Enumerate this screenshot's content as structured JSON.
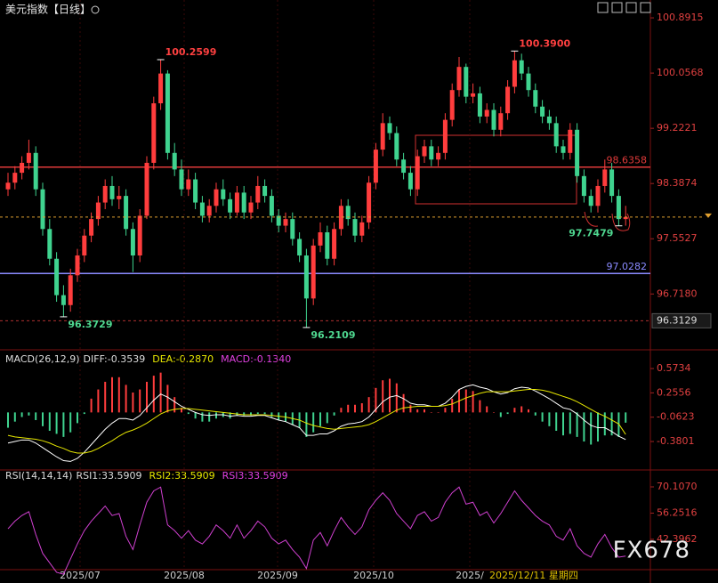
{
  "chart_data": {
    "type": "candlestick",
    "title": "美元指数【日线】",
    "ylim": [
      96.17,
      101.0
    ],
    "yticks": [
      100.8915,
      100.0568,
      99.2221,
      98.3874,
      97.5527,
      {
        "value": 96.718,
        "label": "96.7180"
      }
    ],
    "up_color": "#ff3d3d",
    "down_color": "#3fd38f",
    "candles": [
      [
        98.3,
        98.55,
        98.2,
        98.4
      ],
      [
        98.4,
        98.65,
        98.3,
        98.55
      ],
      [
        98.55,
        98.8,
        98.45,
        98.7
      ],
      [
        98.7,
        99.05,
        98.6,
        98.85
      ],
      [
        98.85,
        98.95,
        98.2,
        98.3
      ],
      [
        98.3,
        98.4,
        97.6,
        97.7
      ],
      [
        97.7,
        97.85,
        97.15,
        97.25
      ],
      [
        97.25,
        97.35,
        96.6,
        96.7
      ],
      [
        96.7,
        96.85,
        96.3729,
        96.55
      ],
      [
        96.55,
        97.1,
        96.45,
        97.0
      ],
      [
        97.0,
        97.4,
        96.9,
        97.3
      ],
      [
        97.3,
        97.7,
        97.2,
        97.6
      ],
      [
        97.6,
        97.95,
        97.5,
        97.85
      ],
      [
        97.85,
        98.2,
        97.75,
        98.1
      ],
      [
        98.1,
        98.45,
        98.0,
        98.35
      ],
      [
        98.35,
        98.5,
        98.05,
        98.15
      ],
      [
        98.15,
        98.35,
        98.0,
        98.2
      ],
      [
        98.2,
        98.3,
        97.6,
        97.7
      ],
      [
        97.7,
        97.8,
        97.05,
        97.3
      ],
      [
        97.3,
        98.0,
        97.2,
        97.9
      ],
      [
        97.9,
        98.8,
        97.85,
        98.7
      ],
      [
        98.7,
        99.7,
        98.6,
        99.6
      ],
      [
        99.6,
        100.2599,
        99.5,
        100.05
      ],
      [
        100.05,
        100.1,
        98.75,
        98.85
      ],
      [
        98.85,
        99.0,
        98.5,
        98.6
      ],
      [
        98.6,
        98.75,
        98.2,
        98.3
      ],
      [
        98.3,
        98.6,
        98.2,
        98.45
      ],
      [
        98.45,
        98.55,
        98.0,
        98.1
      ],
      [
        98.1,
        98.2,
        97.8,
        97.9
      ],
      [
        97.9,
        98.15,
        97.8,
        98.05
      ],
      [
        98.05,
        98.4,
        97.95,
        98.3
      ],
      [
        98.3,
        98.45,
        98.05,
        98.15
      ],
      [
        98.15,
        98.25,
        97.85,
        97.95
      ],
      [
        97.95,
        98.35,
        97.9,
        98.25
      ],
      [
        98.25,
        98.35,
        97.85,
        97.95
      ],
      [
        97.95,
        98.2,
        97.85,
        98.1
      ],
      [
        98.1,
        98.5,
        98.0,
        98.35
      ],
      [
        98.35,
        98.45,
        98.1,
        98.2
      ],
      [
        98.2,
        98.3,
        97.8,
        97.9
      ],
      [
        97.9,
        98.0,
        97.65,
        97.75
      ],
      [
        97.75,
        97.95,
        97.65,
        97.85
      ],
      [
        97.85,
        97.95,
        97.45,
        97.55
      ],
      [
        97.55,
        97.65,
        97.2,
        97.3
      ],
      [
        97.3,
        97.4,
        96.2109,
        96.65
      ],
      [
        96.65,
        97.55,
        96.55,
        97.45
      ],
      [
        97.45,
        97.8,
        97.35,
        97.65
      ],
      [
        97.65,
        97.75,
        97.15,
        97.25
      ],
      [
        97.25,
        97.8,
        97.15,
        97.7
      ],
      [
        97.7,
        98.15,
        97.6,
        98.05
      ],
      [
        98.05,
        98.15,
        97.75,
        97.85
      ],
      [
        97.85,
        97.95,
        97.5,
        97.6
      ],
      [
        97.6,
        97.9,
        97.5,
        97.8
      ],
      [
        97.8,
        98.5,
        97.7,
        98.4
      ],
      [
        98.4,
        99.0,
        98.3,
        98.9
      ],
      [
        98.9,
        99.45,
        98.8,
        99.3
      ],
      [
        99.3,
        99.4,
        99.05,
        99.15
      ],
      [
        99.15,
        99.25,
        98.65,
        98.75
      ],
      [
        98.75,
        98.85,
        98.45,
        98.55
      ],
      [
        98.55,
        98.65,
        98.2,
        98.3
      ],
      [
        98.3,
        98.9,
        98.2,
        98.8
      ],
      [
        98.8,
        99.05,
        98.7,
        98.95
      ],
      [
        98.95,
        99.05,
        98.65,
        98.75
      ],
      [
        98.75,
        98.95,
        98.65,
        98.85
      ],
      [
        98.85,
        99.45,
        98.75,
        99.35
      ],
      [
        99.35,
        99.9,
        99.25,
        99.8
      ],
      [
        99.8,
        100.3,
        99.7,
        100.15
      ],
      [
        100.15,
        100.2,
        99.6,
        99.7
      ],
      [
        99.7,
        99.9,
        99.6,
        99.75
      ],
      [
        99.75,
        99.85,
        99.3,
        99.4
      ],
      [
        99.4,
        99.6,
        99.3,
        99.5
      ],
      [
        99.5,
        99.6,
        99.1,
        99.2
      ],
      [
        99.2,
        99.55,
        99.1,
        99.45
      ],
      [
        99.45,
        99.95,
        99.35,
        99.85
      ],
      [
        99.85,
        100.39,
        99.75,
        100.25
      ],
      [
        100.25,
        100.35,
        99.95,
        100.05
      ],
      [
        100.05,
        100.15,
        99.7,
        99.8
      ],
      [
        99.8,
        99.9,
        99.45,
        99.55
      ],
      [
        99.55,
        99.65,
        99.3,
        99.4
      ],
      [
        99.4,
        99.5,
        99.2,
        99.3
      ],
      [
        99.3,
        99.4,
        98.85,
        98.95
      ],
      [
        98.95,
        99.05,
        98.75,
        98.85
      ],
      [
        98.85,
        99.3,
        98.75,
        99.2
      ],
      [
        99.2,
        99.3,
        98.4,
        98.5
      ],
      [
        98.5,
        98.6,
        98.1,
        98.2
      ],
      [
        98.2,
        98.3,
        97.95,
        98.05
      ],
      [
        98.05,
        98.45,
        97.95,
        98.35
      ],
      [
        98.35,
        98.75,
        98.25,
        98.6
      ],
      [
        98.6,
        98.7,
        98.1,
        98.2
      ],
      [
        98.2,
        98.3,
        97.7479,
        97.85
      ],
      [
        97.85,
        98.05,
        97.75,
        97.88
      ]
    ],
    "annotations": [
      {
        "value": 100.2599,
        "color": "#ff4040"
      },
      {
        "value": 100.39,
        "label": "100.3900",
        "color": "#ff4040"
      },
      {
        "value": 96.3729,
        "color": "#4fd890"
      },
      {
        "value": 96.2109,
        "color": "#4fd890"
      },
      {
        "value": 97.7479,
        "color": "#4fd890"
      }
    ],
    "hlines": [
      {
        "value": 98.6358,
        "color": "#e03a3a"
      },
      {
        "value": 97.0282,
        "color": "#8a8aff"
      },
      {
        "value": 96.3129,
        "color": "#b03030",
        "dashed": true
      }
    ],
    "last_line_color": "#e0a030",
    "x_labels": [
      "2025/07",
      "2025/08",
      "2025/09",
      "2025/10",
      "2025/"
    ],
    "cursor_label": "2025/12/11 星期四",
    "watermark": "FX678",
    "macd": {
      "header": [
        "MACD(26,12,9)",
        "DIFF:-0.3539",
        "DEA:-0.2870",
        "MACD:-0.1340"
      ],
      "ylim": [
        -0.74,
        0.76
      ],
      "yticks": [
        0.5734,
        0.2556,
        -0.0623,
        -0.3801
      ],
      "diff": [
        -0.4,
        -0.38,
        -0.36,
        -0.36,
        -0.4,
        -0.46,
        -0.52,
        -0.58,
        -0.63,
        -0.64,
        -0.6,
        -0.52,
        -0.42,
        -0.32,
        -0.22,
        -0.14,
        -0.08,
        -0.08,
        -0.1,
        -0.04,
        0.06,
        0.16,
        0.24,
        0.2,
        0.14,
        0.08,
        0.04,
        0.0,
        -0.03,
        -0.04,
        -0.03,
        -0.03,
        -0.05,
        -0.04,
        -0.05,
        -0.05,
        -0.04,
        -0.04,
        -0.07,
        -0.1,
        -0.12,
        -0.16,
        -0.2,
        -0.3,
        -0.3,
        -0.28,
        -0.28,
        -0.24,
        -0.18,
        -0.15,
        -0.14,
        -0.12,
        -0.06,
        0.04,
        0.14,
        0.2,
        0.22,
        0.18,
        0.12,
        0.1,
        0.1,
        0.08,
        0.08,
        0.12,
        0.2,
        0.3,
        0.34,
        0.36,
        0.33,
        0.31,
        0.27,
        0.24,
        0.26,
        0.31,
        0.33,
        0.32,
        0.28,
        0.23,
        0.18,
        0.12,
        0.06,
        0.04,
        -0.02,
        -0.1,
        -0.17,
        -0.2,
        -0.2,
        -0.25,
        -0.31,
        -0.3539
      ],
      "dea": [
        -0.3,
        -0.32,
        -0.33,
        -0.34,
        -0.35,
        -0.37,
        -0.4,
        -0.44,
        -0.47,
        -0.51,
        -0.53,
        -0.53,
        -0.51,
        -0.47,
        -0.42,
        -0.37,
        -0.31,
        -0.26,
        -0.23,
        -0.19,
        -0.14,
        -0.08,
        -0.02,
        0.02,
        0.04,
        0.05,
        0.05,
        0.04,
        0.03,
        0.02,
        0.01,
        0.0,
        -0.01,
        -0.02,
        -0.03,
        -0.03,
        -0.03,
        -0.03,
        -0.04,
        -0.05,
        -0.06,
        -0.08,
        -0.1,
        -0.14,
        -0.17,
        -0.19,
        -0.21,
        -0.22,
        -0.21,
        -0.2,
        -0.19,
        -0.18,
        -0.16,
        -0.12,
        -0.07,
        -0.02,
        0.03,
        0.06,
        0.07,
        0.08,
        0.08,
        0.08,
        0.08,
        0.09,
        0.11,
        0.15,
        0.19,
        0.22,
        0.25,
        0.27,
        0.27,
        0.27,
        0.27,
        0.28,
        0.29,
        0.3,
        0.3,
        0.29,
        0.27,
        0.24,
        0.21,
        0.18,
        0.14,
        0.09,
        0.04,
        -0.01,
        -0.05,
        -0.1,
        -0.15,
        -0.287
      ],
      "hist": [
        -0.2,
        -0.12,
        -0.06,
        -0.04,
        -0.1,
        -0.18,
        -0.24,
        -0.28,
        -0.32,
        -0.26,
        -0.14,
        -0.02,
        0.18,
        0.3,
        0.4,
        0.46,
        0.46,
        0.36,
        0.26,
        0.3,
        0.4,
        0.48,
        0.52,
        0.36,
        0.2,
        0.06,
        -0.02,
        -0.08,
        -0.12,
        -0.12,
        -0.08,
        -0.06,
        -0.08,
        -0.04,
        -0.04,
        -0.04,
        -0.02,
        -0.02,
        -0.06,
        -0.1,
        -0.12,
        -0.16,
        -0.2,
        -0.32,
        -0.26,
        -0.18,
        -0.14,
        -0.04,
        0.06,
        0.1,
        0.1,
        0.12,
        0.2,
        0.32,
        0.42,
        0.44,
        0.38,
        0.24,
        0.1,
        0.04,
        0.04,
        0.0,
        0.0,
        0.06,
        0.18,
        0.3,
        0.3,
        0.28,
        0.16,
        0.08,
        0.0,
        -0.06,
        -0.02,
        0.06,
        0.08,
        0.04,
        -0.04,
        -0.12,
        -0.18,
        -0.24,
        -0.3,
        -0.28,
        -0.32,
        -0.38,
        -0.42,
        -0.38,
        -0.3,
        -0.3,
        -0.32,
        -0.134
      ],
      "colors": {
        "diff": "#ffffff",
        "dea": "#e6e600",
        "macd": "#e040e0"
      }
    },
    "rsi": {
      "header": [
        "RSI(14,14,14)",
        "RSI1:33.5909",
        "RSI2:33.5909",
        "RSI3:33.5909"
      ],
      "ylim": [
        26.4,
        73.4
      ],
      "yticks": [
        {
          "value": 70.107,
          "label": "70.1070"
        },
        56.2516,
        42.3962
      ],
      "color": "#d040d0",
      "values": [
        48,
        52,
        55,
        57,
        45,
        35,
        30,
        25,
        24,
        32,
        40,
        47,
        52,
        56,
        60,
        55,
        56,
        44,
        37,
        50,
        62,
        68,
        70,
        50,
        47,
        43,
        47,
        42,
        40,
        44,
        50,
        47,
        43,
        50,
        43,
        47,
        52,
        49,
        43,
        40,
        42,
        37,
        33,
        27,
        42,
        46,
        39,
        47,
        54,
        49,
        45,
        49,
        58,
        63,
        67,
        63,
        56,
        52,
        48,
        55,
        57,
        52,
        54,
        62,
        67,
        70,
        61,
        62,
        55,
        57,
        51,
        56,
        62,
        68,
        63,
        59,
        55,
        52,
        50,
        44,
        42,
        48,
        39,
        35,
        33,
        40,
        45,
        38,
        33,
        33.5909
      ]
    }
  }
}
